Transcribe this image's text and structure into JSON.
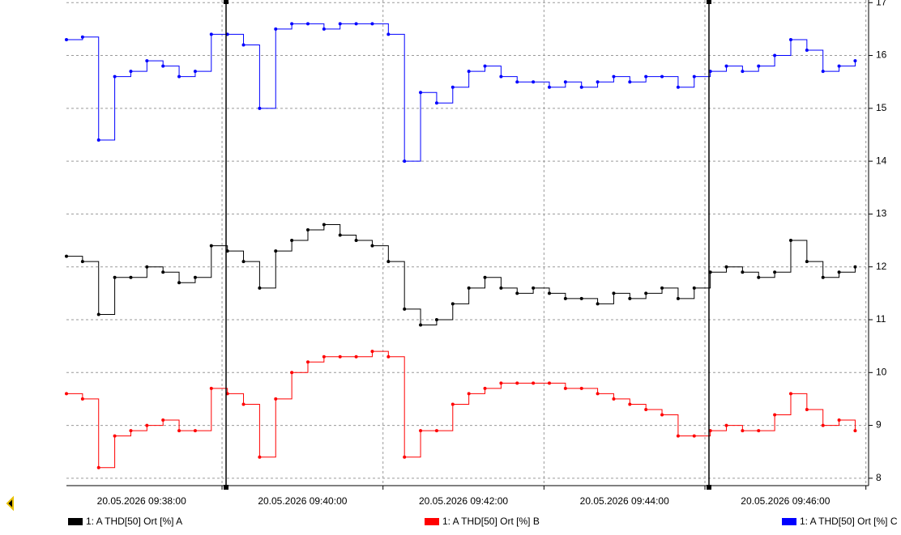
{
  "chart_data": {
    "type": "line",
    "x": [
      "20.05.2026 09:37:04",
      "20.05.2026 09:37:16",
      "20.05.2026 09:37:28",
      "20.05.2026 09:37:40",
      "20.05.2026 09:37:52",
      "20.05.2026 09:38:04",
      "20.05.2026 09:38:16",
      "20.05.2026 09:38:28",
      "20.05.2026 09:38:40",
      "20.05.2026 09:38:52",
      "20.05.2026 09:39:04",
      "20.05.2026 09:39:16",
      "20.05.2026 09:39:28",
      "20.05.2026 09:39:40",
      "20.05.2026 09:39:52",
      "20.05.2026 09:40:04",
      "20.05.2026 09:40:16",
      "20.05.2026 09:40:28",
      "20.05.2026 09:40:40",
      "20.05.2026 09:40:52",
      "20.05.2026 09:41:04",
      "20.05.2026 09:41:16",
      "20.05.2026 09:41:28",
      "20.05.2026 09:41:40",
      "20.05.2026 09:41:52",
      "20.05.2026 09:42:04",
      "20.05.2026 09:42:16",
      "20.05.2026 09:42:28",
      "20.05.2026 09:42:40",
      "20.05.2026 09:42:52",
      "20.05.2026 09:43:04",
      "20.05.2026 09:43:16",
      "20.05.2026 09:43:28",
      "20.05.2026 09:43:40",
      "20.05.2026 09:43:52",
      "20.05.2026 09:44:04",
      "20.05.2026 09:44:16",
      "20.05.2026 09:44:28",
      "20.05.2026 09:44:40",
      "20.05.2026 09:44:52",
      "20.05.2026 09:45:04",
      "20.05.2026 09:45:16",
      "20.05.2026 09:45:28",
      "20.05.2026 09:45:40",
      "20.05.2026 09:45:52",
      "20.05.2026 09:46:04",
      "20.05.2026 09:46:16",
      "20.05.2026 09:46:28",
      "20.05.2026 09:46:40",
      "20.05.2026 09:46:52"
    ],
    "series": [
      {
        "name": "1: A THD[50] Ort [%] A",
        "color": "#000000",
        "values": [
          12.2,
          12.1,
          11.1,
          11.8,
          11.8,
          12.0,
          11.9,
          11.7,
          11.8,
          12.4,
          12.3,
          12.1,
          11.6,
          12.3,
          12.5,
          12.7,
          12.8,
          12.6,
          12.5,
          12.4,
          12.1,
          11.2,
          10.9,
          11.0,
          11.3,
          11.6,
          11.8,
          11.6,
          11.5,
          11.6,
          11.5,
          11.4,
          11.4,
          11.3,
          11.5,
          11.4,
          11.5,
          11.6,
          11.4,
          11.6,
          11.9,
          12.0,
          11.9,
          11.8,
          11.9,
          12.5,
          12.1,
          11.8,
          11.9,
          12.0
        ]
      },
      {
        "name": "1: A THD[50] Ort [%] B",
        "color": "#ff0000",
        "values": [
          9.6,
          9.5,
          8.2,
          8.8,
          8.9,
          9.0,
          9.1,
          8.9,
          8.9,
          9.7,
          9.6,
          9.4,
          8.4,
          9.5,
          10.0,
          10.2,
          10.3,
          10.3,
          10.3,
          10.4,
          10.3,
          8.4,
          8.9,
          8.9,
          9.4,
          9.6,
          9.7,
          9.8,
          9.8,
          9.8,
          9.8,
          9.7,
          9.7,
          9.6,
          9.5,
          9.4,
          9.3,
          9.2,
          8.8,
          8.8,
          8.9,
          9.0,
          8.9,
          8.9,
          9.2,
          9.6,
          9.3,
          9.0,
          9.1,
          8.9
        ]
      },
      {
        "name": "1: A THD[50] Ort [%] C",
        "color": "#0000ff",
        "values": [
          16.3,
          16.35,
          14.4,
          15.6,
          15.7,
          15.9,
          15.8,
          15.6,
          15.7,
          16.4,
          16.4,
          16.2,
          15.0,
          16.5,
          16.6,
          16.6,
          16.5,
          16.6,
          16.6,
          16.6,
          16.4,
          14.0,
          15.3,
          15.1,
          15.4,
          15.7,
          15.8,
          15.6,
          15.5,
          15.5,
          15.4,
          15.5,
          15.4,
          15.5,
          15.6,
          15.5,
          15.6,
          15.6,
          15.4,
          15.6,
          15.7,
          15.8,
          15.7,
          15.8,
          16.0,
          16.3,
          16.1,
          15.7,
          15.8,
          15.9
        ]
      }
    ],
    "xlim": [
      "20.05.2026 09:37:04",
      "20.05.2026 09:47:02"
    ],
    "xticks": [
      "20.05.2026 09:38:00",
      "20.05.2026 09:40:00",
      "20.05.2026 09:42:00",
      "20.05.2026 09:44:00",
      "20.05.2026 09:46:00"
    ],
    "xgrid": [
      "20.05.2026 09:39:00",
      "20.05.2026 09:41:00",
      "20.05.2026 09:43:00",
      "20.05.2026 09:45:00",
      "20.05.2026 09:47:00"
    ],
    "cursors": [
      "20.05.2026 09:39:03",
      "20.05.2026 09:45:03"
    ],
    "ylim": [
      7.86,
      17.05
    ],
    "yticks": [
      8,
      9,
      10,
      11,
      12,
      13,
      14,
      15,
      16,
      17
    ],
    "grid": true,
    "step": true,
    "legend": "bottom"
  }
}
